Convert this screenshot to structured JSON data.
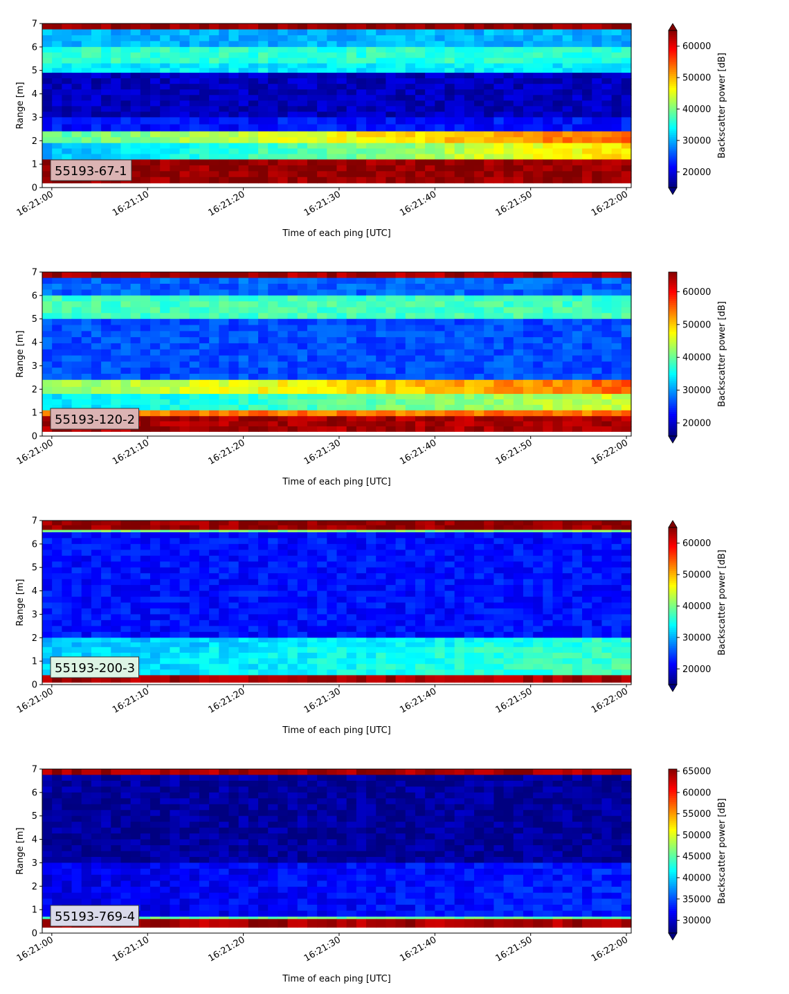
{
  "chart_data": [
    {
      "type": "heatmap",
      "station_label": "55193-67-1",
      "xlabel": "Time of each ping [UTC]",
      "ylabel": "Range [m]",
      "colorbar_label": "Backscatter power [dB]",
      "colormap": "jet",
      "xlim": [
        "16:20:59",
        "16:22:00.5"
      ],
      "ylim": [
        0,
        7
      ],
      "x_ticks": [
        "16:21:00",
        "16:21:10",
        "16:21:20",
        "16:21:30",
        "16:21:40",
        "16:21:50",
        "16:22:00"
      ],
      "y_ticks": [
        0,
        1,
        2,
        3,
        4,
        5,
        6,
        7
      ],
      "colorbar_range": [
        15000,
        65000
      ],
      "colorbar_ticks": [
        20000,
        30000,
        40000,
        50000,
        60000
      ],
      "colorbar_extend": "both",
      "label_box_color": "#dbb3b3",
      "layers": [
        {
          "range_m": [
            6.75,
            7.0
          ],
          "value": 64000
        },
        {
          "range_m": [
            6.0,
            6.75
          ],
          "value": 30000
        },
        {
          "range_m": [
            5.3,
            6.0
          ],
          "value": 36000
        },
        {
          "range_m": [
            4.9,
            5.3
          ],
          "value": 33000
        },
        {
          "range_m": [
            3.0,
            4.9
          ],
          "value": 18000
        },
        {
          "range_m": [
            2.4,
            3.0
          ],
          "value": 22000
        },
        {
          "range_m": [
            1.9,
            2.4
          ],
          "value": 38000,
          "value_end": 54000
        },
        {
          "range_m": [
            1.2,
            1.9
          ],
          "value": 30000,
          "value_end": 48000
        },
        {
          "range_m": [
            0.2,
            1.2
          ],
          "value": 64000
        }
      ]
    },
    {
      "type": "heatmap",
      "station_label": "55193-120-2",
      "xlabel": "Time of each ping [UTC]",
      "ylabel": "Range [m]",
      "colorbar_label": "Backscatter power [dB]",
      "colormap": "jet",
      "xlim": [
        "16:20:59",
        "16:22:00.5"
      ],
      "ylim": [
        0,
        7
      ],
      "x_ticks": [
        "16:21:00",
        "16:21:10",
        "16:21:20",
        "16:21:30",
        "16:21:40",
        "16:21:50",
        "16:22:00"
      ],
      "y_ticks": [
        0,
        1,
        2,
        3,
        4,
        5,
        6,
        7
      ],
      "colorbar_range": [
        16000,
        66000
      ],
      "colorbar_ticks": [
        20000,
        30000,
        40000,
        50000,
        60000
      ],
      "colorbar_extend": "min",
      "label_box_color": "#dbb3b3",
      "layers": [
        {
          "range_m": [
            6.75,
            7.0
          ],
          "value": 64000
        },
        {
          "range_m": [
            6.0,
            6.75
          ],
          "value": 27000
        },
        {
          "range_m": [
            5.0,
            6.0
          ],
          "value": 38000
        },
        {
          "range_m": [
            2.4,
            5.0
          ],
          "value": 26000
        },
        {
          "range_m": [
            1.8,
            2.4
          ],
          "value": 42000,
          "value_end": 55000
        },
        {
          "range_m": [
            1.1,
            1.8
          ],
          "value": 33000,
          "value_end": 45000
        },
        {
          "range_m": [
            0.85,
            1.1
          ],
          "value": 54000
        },
        {
          "range_m": [
            0.2,
            0.85
          ],
          "value": 64000
        }
      ]
    },
    {
      "type": "heatmap",
      "station_label": "55193-200-3",
      "xlabel": "Time of each ping [UTC]",
      "ylabel": "Range [m]",
      "colorbar_label": "Backscatter power [dB]",
      "colormap": "jet",
      "xlim": [
        "16:20:59",
        "16:22:00.5"
      ],
      "ylim": [
        0,
        7
      ],
      "x_ticks": [
        "16:21:00",
        "16:21:10",
        "16:21:20",
        "16:21:30",
        "16:21:40",
        "16:21:50",
        "16:22:00"
      ],
      "y_ticks": [
        0,
        1,
        2,
        3,
        4,
        5,
        6,
        7
      ],
      "colorbar_range": [
        15000,
        65000
      ],
      "colorbar_ticks": [
        20000,
        30000,
        40000,
        50000,
        60000
      ],
      "colorbar_extend": "both",
      "label_box_color": "#ddf4e4",
      "layers": [
        {
          "range_m": [
            6.6,
            7.0
          ],
          "value": 64000
        },
        {
          "range_m": [
            6.5,
            6.6
          ],
          "value": 40000
        },
        {
          "range_m": [
            2.0,
            6.5
          ],
          "value": 22000
        },
        {
          "range_m": [
            1.6,
            2.0
          ],
          "value": 30000,
          "value_end": 36000
        },
        {
          "range_m": [
            0.4,
            1.6
          ],
          "value": 31000,
          "value_end": 37000
        },
        {
          "range_m": [
            0.1,
            0.4
          ],
          "value": 63000
        }
      ]
    },
    {
      "type": "heatmap",
      "station_label": "55193-769-4",
      "xlabel": "Time of each ping [UTC]",
      "ylabel": "Range [m]",
      "colorbar_label": "Backscatter power [dB]",
      "colormap": "jet",
      "xlim": [
        "16:20:59",
        "16:22:00.5"
      ],
      "ylim": [
        0,
        7
      ],
      "x_ticks": [
        "16:21:00",
        "16:21:10",
        "16:21:20",
        "16:21:30",
        "16:21:40",
        "16:21:50",
        "16:22:00"
      ],
      "y_ticks": [
        0,
        1,
        2,
        3,
        4,
        5,
        6,
        7
      ],
      "colorbar_range": [
        27000,
        65500
      ],
      "colorbar_ticks": [
        30000,
        35000,
        40000,
        45000,
        50000,
        55000,
        60000,
        65000
      ],
      "colorbar_extend": "min",
      "label_box_color": "#d9d9ea",
      "layers": [
        {
          "range_m": [
            6.75,
            7.0
          ],
          "value": 64000
        },
        {
          "range_m": [
            3.0,
            6.75
          ],
          "value": 28000
        },
        {
          "range_m": [
            0.7,
            3.0
          ],
          "value": 31000,
          "value_end": 33000
        },
        {
          "range_m": [
            0.6,
            0.7
          ],
          "value": 45000
        },
        {
          "range_m": [
            0.25,
            0.6
          ],
          "value": 64000
        }
      ]
    }
  ]
}
